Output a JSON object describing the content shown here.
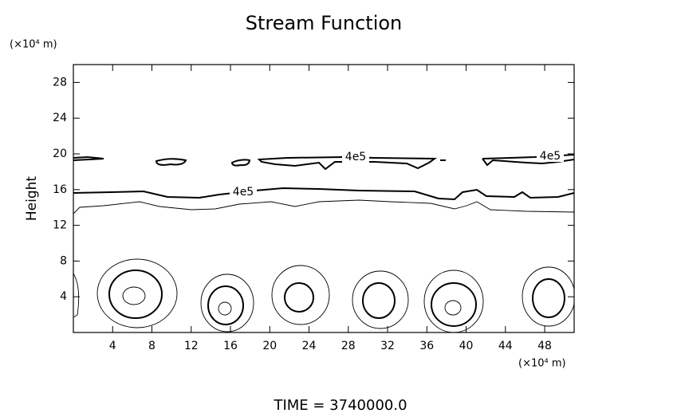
{
  "chart_data": {
    "type": "contour",
    "title": "Stream Function",
    "ylabel": "Height",
    "x_unit": "(×10⁴ m)",
    "y_unit": "(×10⁴ m)",
    "footer": "TIME  =  3740000.0",
    "xlim": [
      0,
      51
    ],
    "ylim": [
      0,
      30
    ],
    "xticks": [
      4,
      8,
      12,
      16,
      20,
      24,
      28,
      32,
      36,
      40,
      44,
      48
    ],
    "yticks": [
      4,
      8,
      12,
      16,
      20,
      24,
      28
    ],
    "contour_labels": [
      "4e5",
      "4e5",
      "4e5"
    ]
  }
}
